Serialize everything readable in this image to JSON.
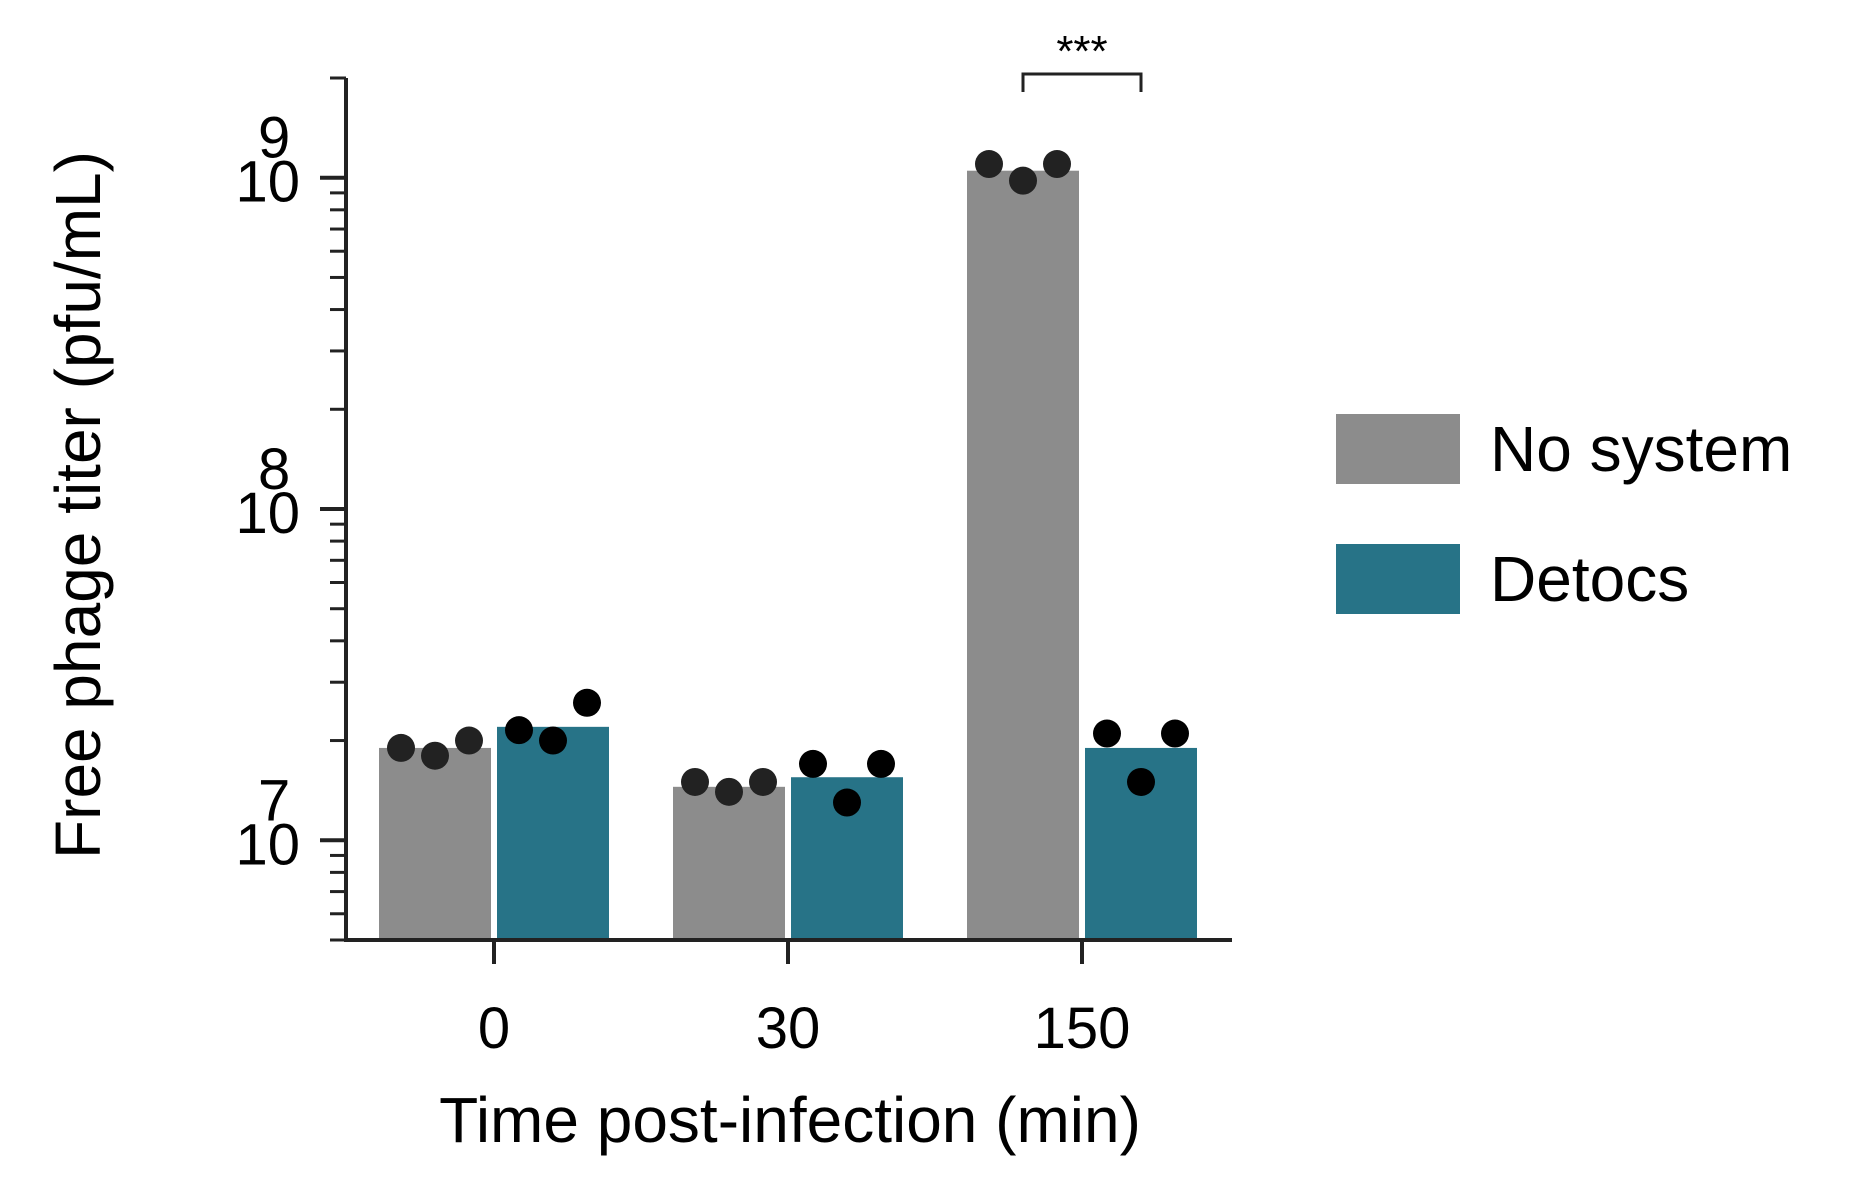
{
  "chart_data": {
    "type": "bar",
    "title": "",
    "xlabel": "Time post-infection (min)",
    "ylabel": "Free phage titer (pfu/mL)",
    "yscale": "log",
    "ylim": [
      5000000,
      2000000000
    ],
    "categories": [
      "0",
      "30",
      "150"
    ],
    "y_ticks": [
      {
        "value": 10000000,
        "base": "10",
        "exp": "7"
      },
      {
        "value": 100000000,
        "base": "10",
        "exp": "8"
      },
      {
        "value": 1000000000,
        "base": "10",
        "exp": "9"
      }
    ],
    "series": [
      {
        "name": "No system",
        "color": "#8c8c8c",
        "values": [
          19000000,
          14500000,
          1050000000
        ],
        "points": [
          [
            19000000,
            18000000,
            20000000
          ],
          [
            15000000,
            14000000,
            15000000
          ],
          [
            1100000000,
            980000000,
            1100000000
          ]
        ]
      },
      {
        "name": "Detocs",
        "color": "#277387",
        "values": [
          22000000,
          15500000,
          19000000
        ],
        "points": [
          [
            21500000,
            20000000,
            26000000
          ],
          [
            17000000,
            13000000,
            17000000
          ],
          [
            21000000,
            15000000,
            21000000
          ]
        ]
      }
    ],
    "significance": {
      "category": "150",
      "label": "***"
    },
    "legend": "right",
    "grid": false
  }
}
